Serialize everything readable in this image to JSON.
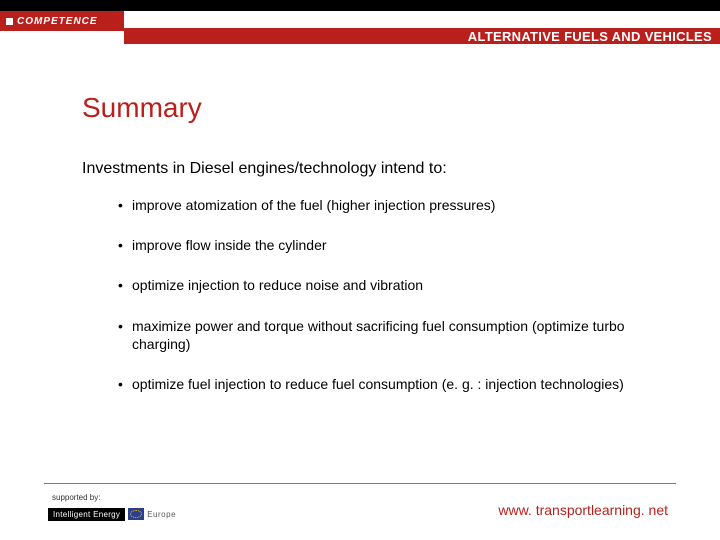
{
  "colors": {
    "brand_red": "#b91f1b",
    "black": "#000000",
    "white": "#ffffff",
    "rule_gray": "#7a7a7a",
    "badge_blue": "#2b3e8f",
    "badge_star": "#f4c400"
  },
  "typography": {
    "base_family": "Arial",
    "title_size_pt": 21,
    "lead_size_pt": 12,
    "bullet_size_pt": 10.5,
    "subtitle_size_pt": 10,
    "url_size_pt": 10.5
  },
  "header": {
    "logo_text": "COMPETENCE",
    "subtitle": "ALTERNATIVE FUELS AND VEHICLES"
  },
  "body": {
    "title": "Summary",
    "lead": "Investments in Diesel engines/technology intend to:",
    "bullets": [
      "improve atomization of the fuel (higher injection pressures)",
      "improve flow inside the cylinder",
      "optimize injection to reduce noise and vibration",
      "maximize power and torque without sacrificing fuel consumption (optimize turbo charging)",
      "optimize fuel injection to reduce fuel consumption (e. g. : injection technologies)"
    ]
  },
  "footer": {
    "supported_label": "supported by:",
    "badge_left": "Intelligent Energy",
    "badge_right": "Europe",
    "url": "www. transportlearning. net"
  }
}
